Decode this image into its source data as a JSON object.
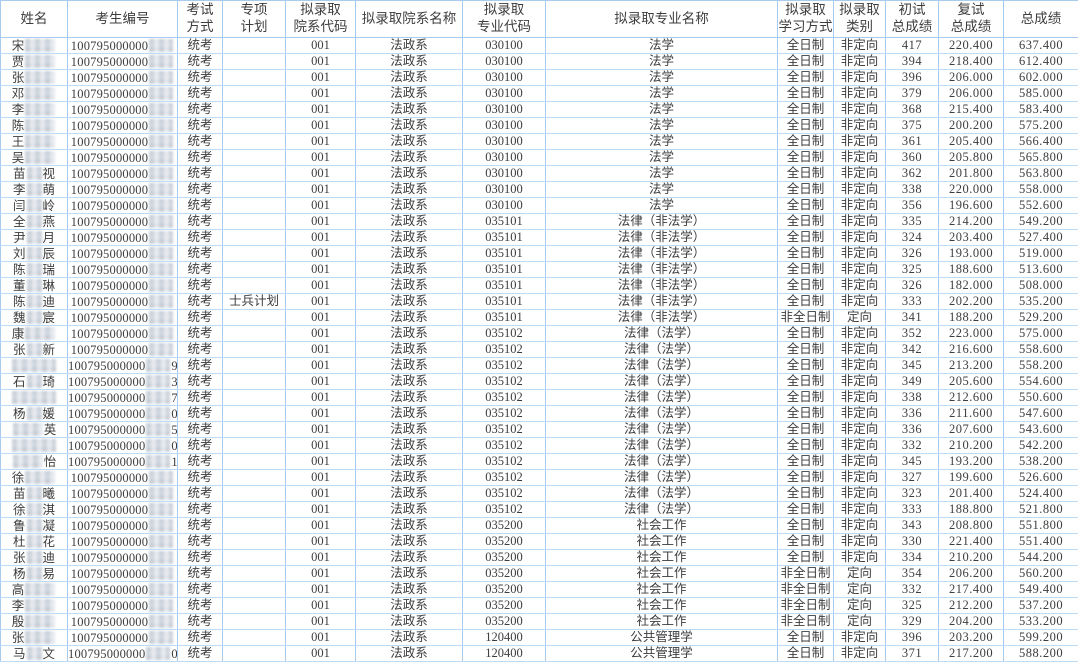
{
  "colors": {
    "grid_line": "#a6cbee",
    "grid_line_light": "#badaf5",
    "text": "#3d3d3d",
    "background": "#ffffff",
    "redaction_blur": "#d9dee5"
  },
  "table": {
    "candidate_prefix": "100795000000",
    "headers": [
      {
        "id": "name",
        "lines": [
          "姓名"
        ]
      },
      {
        "id": "candidate-no",
        "lines": [
          "考生编号"
        ]
      },
      {
        "id": "exam-method",
        "lines": [
          "考试",
          "方式"
        ]
      },
      {
        "id": "special-plan",
        "lines": [
          "专项",
          "计划"
        ]
      },
      {
        "id": "dept-code",
        "lines": [
          "拟录取",
          "院系代码"
        ]
      },
      {
        "id": "dept-name",
        "lines": [
          "拟录取院系名称"
        ]
      },
      {
        "id": "major-code",
        "lines": [
          "拟录取",
          "专业代码"
        ]
      },
      {
        "id": "major-name",
        "lines": [
          "拟录取专业名称"
        ]
      },
      {
        "id": "study-mode",
        "lines": [
          "拟录取",
          "学习方式"
        ]
      },
      {
        "id": "category",
        "lines": [
          "拟录取",
          "类别"
        ]
      },
      {
        "id": "initial-score",
        "lines": [
          "初试",
          "总成绩"
        ]
      },
      {
        "id": "retest-score",
        "lines": [
          "复试",
          "总成绩"
        ]
      },
      {
        "id": "total-score",
        "lines": [
          "总成绩"
        ]
      }
    ],
    "rows": [
      {
        "np": "宋",
        "ns": "",
        "nf": "",
        "exam": "统考",
        "plan": "",
        "dcode": "001",
        "dname": "法政系",
        "mcode": "030100",
        "mname": "法学",
        "study": "全日制",
        "cat": "非定向",
        "s1": "417",
        "s2": "220.400",
        "tot": "637.400"
      },
      {
        "np": "贾",
        "ns": "",
        "nf": "",
        "exam": "统考",
        "plan": "",
        "dcode": "001",
        "dname": "法政系",
        "mcode": "030100",
        "mname": "法学",
        "study": "全日制",
        "cat": "非定向",
        "s1": "394",
        "s2": "218.400",
        "tot": "612.400"
      },
      {
        "np": "张",
        "ns": "",
        "nf": "",
        "exam": "统考",
        "plan": "",
        "dcode": "001",
        "dname": "法政系",
        "mcode": "030100",
        "mname": "法学",
        "study": "全日制",
        "cat": "非定向",
        "s1": "396",
        "s2": "206.000",
        "tot": "602.000"
      },
      {
        "np": "邓",
        "ns": "",
        "nf": "",
        "exam": "统考",
        "plan": "",
        "dcode": "001",
        "dname": "法政系",
        "mcode": "030100",
        "mname": "法学",
        "study": "全日制",
        "cat": "非定向",
        "s1": "379",
        "s2": "206.000",
        "tot": "585.000"
      },
      {
        "np": "李",
        "ns": "",
        "nf": "",
        "exam": "统考",
        "plan": "",
        "dcode": "001",
        "dname": "法政系",
        "mcode": "030100",
        "mname": "法学",
        "study": "全日制",
        "cat": "非定向",
        "s1": "368",
        "s2": "215.400",
        "tot": "583.400"
      },
      {
        "np": "陈",
        "ns": "",
        "nf": "",
        "exam": "统考",
        "plan": "",
        "dcode": "001",
        "dname": "法政系",
        "mcode": "030100",
        "mname": "法学",
        "study": "全日制",
        "cat": "非定向",
        "s1": "375",
        "s2": "200.200",
        "tot": "575.200"
      },
      {
        "np": "王",
        "ns": "",
        "nf": "",
        "exam": "统考",
        "plan": "",
        "dcode": "001",
        "dname": "法政系",
        "mcode": "030100",
        "mname": "法学",
        "study": "全日制",
        "cat": "非定向",
        "s1": "361",
        "s2": "205.400",
        "tot": "566.400"
      },
      {
        "np": "吴",
        "ns": "",
        "nf": "",
        "exam": "统考",
        "plan": "",
        "dcode": "001",
        "dname": "法政系",
        "mcode": "030100",
        "mname": "法学",
        "study": "全日制",
        "cat": "非定向",
        "s1": "360",
        "s2": "205.800",
        "tot": "565.800"
      },
      {
        "np": "苗",
        "ns": "视",
        "nf": "",
        "exam": "统考",
        "plan": "",
        "dcode": "001",
        "dname": "法政系",
        "mcode": "030100",
        "mname": "法学",
        "study": "全日制",
        "cat": "非定向",
        "s1": "362",
        "s2": "201.800",
        "tot": "563.800"
      },
      {
        "np": "李",
        "ns": "萌",
        "nf": "",
        "exam": "统考",
        "plan": "",
        "dcode": "001",
        "dname": "法政系",
        "mcode": "030100",
        "mname": "法学",
        "study": "全日制",
        "cat": "非定向",
        "s1": "338",
        "s2": "220.000",
        "tot": "558.000"
      },
      {
        "np": "闫",
        "ns": "岭",
        "nf": "",
        "exam": "统考",
        "plan": "",
        "dcode": "001",
        "dname": "法政系",
        "mcode": "030100",
        "mname": "法学",
        "study": "全日制",
        "cat": "非定向",
        "s1": "356",
        "s2": "196.600",
        "tot": "552.600"
      },
      {
        "np": "全",
        "ns": "燕",
        "nf": "",
        "exam": "统考",
        "plan": "",
        "dcode": "001",
        "dname": "法政系",
        "mcode": "035101",
        "mname": "法律（非法学）",
        "study": "全日制",
        "cat": "非定向",
        "s1": "335",
        "s2": "214.200",
        "tot": "549.200"
      },
      {
        "np": "尹",
        "ns": "月",
        "nf": "",
        "exam": "统考",
        "plan": "",
        "dcode": "001",
        "dname": "法政系",
        "mcode": "035101",
        "mname": "法律（非法学）",
        "study": "全日制",
        "cat": "非定向",
        "s1": "324",
        "s2": "203.400",
        "tot": "527.400"
      },
      {
        "np": "刘",
        "ns": "辰",
        "nf": "",
        "exam": "统考",
        "plan": "",
        "dcode": "001",
        "dname": "法政系",
        "mcode": "035101",
        "mname": "法律（非法学）",
        "study": "全日制",
        "cat": "非定向",
        "s1": "326",
        "s2": "193.000",
        "tot": "519.000"
      },
      {
        "np": "陈",
        "ns": "瑞",
        "nf": "",
        "exam": "统考",
        "plan": "",
        "dcode": "001",
        "dname": "法政系",
        "mcode": "035101",
        "mname": "法律（非法学）",
        "study": "全日制",
        "cat": "非定向",
        "s1": "325",
        "s2": "188.600",
        "tot": "513.600"
      },
      {
        "np": "董",
        "ns": "琳",
        "nf": "",
        "exam": "统考",
        "plan": "",
        "dcode": "001",
        "dname": "法政系",
        "mcode": "035101",
        "mname": "法律（非法学）",
        "study": "全日制",
        "cat": "非定向",
        "s1": "326",
        "s2": "182.000",
        "tot": "508.000"
      },
      {
        "np": "陈",
        "ns": "迪",
        "nf": "",
        "exam": "统考",
        "plan": "士兵计划",
        "dcode": "001",
        "dname": "法政系",
        "mcode": "035101",
        "mname": "法律（非法学）",
        "study": "全日制",
        "cat": "非定向",
        "s1": "333",
        "s2": "202.200",
        "tot": "535.200"
      },
      {
        "np": "魏",
        "ns": "宸",
        "nf": "",
        "exam": "统考",
        "plan": "",
        "dcode": "001",
        "dname": "法政系",
        "mcode": "035101",
        "mname": "法律（非法学）",
        "study": "非全日制",
        "cat": "定向",
        "s1": "341",
        "s2": "188.200",
        "tot": "529.200"
      },
      {
        "np": "康",
        "ns": "",
        "nf": "",
        "exam": "统考",
        "plan": "",
        "dcode": "001",
        "dname": "法政系",
        "mcode": "035102",
        "mname": "法律（法学）",
        "study": "全日制",
        "cat": "非定向",
        "s1": "352",
        "s2": "223.000",
        "tot": "575.000"
      },
      {
        "np": "张",
        "ns": "新",
        "nf": "",
        "exam": "统考",
        "plan": "",
        "dcode": "001",
        "dname": "法政系",
        "mcode": "035102",
        "mname": "法律（法学）",
        "study": "全日制",
        "cat": "非定向",
        "s1": "342",
        "s2": "216.600",
        "tot": "558.600"
      },
      {
        "np": "",
        "ns": "",
        "nf": "9",
        "exam": "统考",
        "plan": "",
        "dcode": "001",
        "dname": "法政系",
        "mcode": "035102",
        "mname": "法律（法学）",
        "study": "全日制",
        "cat": "非定向",
        "s1": "345",
        "s2": "213.200",
        "tot": "558.200"
      },
      {
        "np": "石",
        "ns": "琦",
        "nf": "3",
        "exam": "统考",
        "plan": "",
        "dcode": "001",
        "dname": "法政系",
        "mcode": "035102",
        "mname": "法律（法学）",
        "study": "全日制",
        "cat": "非定向",
        "s1": "349",
        "s2": "205.600",
        "tot": "554.600"
      },
      {
        "np": "",
        "ns": "",
        "nf": "7",
        "exam": "统考",
        "plan": "",
        "dcode": "001",
        "dname": "法政系",
        "mcode": "035102",
        "mname": "法律（法学）",
        "study": "全日制",
        "cat": "非定向",
        "s1": "338",
        "s2": "212.600",
        "tot": "550.600"
      },
      {
        "np": "杨",
        "ns": "媛",
        "nf": "0",
        "exam": "统考",
        "plan": "",
        "dcode": "001",
        "dname": "法政系",
        "mcode": "035102",
        "mname": "法律（法学）",
        "study": "全日制",
        "cat": "非定向",
        "s1": "336",
        "s2": "211.600",
        "tot": "547.600"
      },
      {
        "np": "",
        "ns": "英",
        "nf": "5",
        "exam": "统考",
        "plan": "",
        "dcode": "001",
        "dname": "法政系",
        "mcode": "035102",
        "mname": "法律（法学）",
        "study": "全日制",
        "cat": "非定向",
        "s1": "336",
        "s2": "207.600",
        "tot": "543.600"
      },
      {
        "np": "",
        "ns": "",
        "nf": "0",
        "exam": "统考",
        "plan": "",
        "dcode": "001",
        "dname": "法政系",
        "mcode": "035102",
        "mname": "法律（法学）",
        "study": "全日制",
        "cat": "非定向",
        "s1": "332",
        "s2": "210.200",
        "tot": "542.200"
      },
      {
        "np": "",
        "ns": "怡",
        "nf": "1",
        "exam": "统考",
        "plan": "",
        "dcode": "001",
        "dname": "法政系",
        "mcode": "035102",
        "mname": "法律（法学）",
        "study": "全日制",
        "cat": "非定向",
        "s1": "345",
        "s2": "193.200",
        "tot": "538.200"
      },
      {
        "np": "徐",
        "ns": "",
        "nf": "",
        "exam": "统考",
        "plan": "",
        "dcode": "001",
        "dname": "法政系",
        "mcode": "035102",
        "mname": "法律（法学）",
        "study": "全日制",
        "cat": "非定向",
        "s1": "327",
        "s2": "199.600",
        "tot": "526.600"
      },
      {
        "np": "苗",
        "ns": "曦",
        "nf": "",
        "exam": "统考",
        "plan": "",
        "dcode": "001",
        "dname": "法政系",
        "mcode": "035102",
        "mname": "法律（法学）",
        "study": "全日制",
        "cat": "非定向",
        "s1": "323",
        "s2": "201.400",
        "tot": "524.400"
      },
      {
        "np": "徐",
        "ns": "淇",
        "nf": "",
        "exam": "统考",
        "plan": "",
        "dcode": "001",
        "dname": "法政系",
        "mcode": "035102",
        "mname": "法律（法学）",
        "study": "全日制",
        "cat": "非定向",
        "s1": "333",
        "s2": "188.800",
        "tot": "521.800"
      },
      {
        "np": "鲁",
        "ns": "凝",
        "nf": "",
        "exam": "统考",
        "plan": "",
        "dcode": "001",
        "dname": "法政系",
        "mcode": "035200",
        "mname": "社会工作",
        "study": "全日制",
        "cat": "非定向",
        "s1": "343",
        "s2": "208.800",
        "tot": "551.800"
      },
      {
        "np": "杜",
        "ns": "花",
        "nf": "",
        "exam": "统考",
        "plan": "",
        "dcode": "001",
        "dname": "法政系",
        "mcode": "035200",
        "mname": "社会工作",
        "study": "全日制",
        "cat": "非定向",
        "s1": "330",
        "s2": "221.400",
        "tot": "551.400"
      },
      {
        "np": "张",
        "ns": "迪",
        "nf": "",
        "exam": "统考",
        "plan": "",
        "dcode": "001",
        "dname": "法政系",
        "mcode": "035200",
        "mname": "社会工作",
        "study": "全日制",
        "cat": "非定向",
        "s1": "334",
        "s2": "210.200",
        "tot": "544.200"
      },
      {
        "np": "杨",
        "ns": "易",
        "nf": "",
        "exam": "统考",
        "plan": "",
        "dcode": "001",
        "dname": "法政系",
        "mcode": "035200",
        "mname": "社会工作",
        "study": "非全日制",
        "cat": "定向",
        "s1": "354",
        "s2": "206.200",
        "tot": "560.200"
      },
      {
        "np": "高",
        "ns": "",
        "nf": "",
        "exam": "统考",
        "plan": "",
        "dcode": "001",
        "dname": "法政系",
        "mcode": "035200",
        "mname": "社会工作",
        "study": "非全日制",
        "cat": "定向",
        "s1": "332",
        "s2": "217.400",
        "tot": "549.400"
      },
      {
        "np": "李",
        "ns": "",
        "nf": "",
        "exam": "统考",
        "plan": "",
        "dcode": "001",
        "dname": "法政系",
        "mcode": "035200",
        "mname": "社会工作",
        "study": "非全日制",
        "cat": "定向",
        "s1": "325",
        "s2": "212.200",
        "tot": "537.200"
      },
      {
        "np": "殷",
        "ns": "",
        "nf": "",
        "exam": "统考",
        "plan": "",
        "dcode": "001",
        "dname": "法政系",
        "mcode": "035200",
        "mname": "社会工作",
        "study": "非全日制",
        "cat": "定向",
        "s1": "329",
        "s2": "204.200",
        "tot": "533.200"
      },
      {
        "np": "张",
        "ns": "",
        "nf": "",
        "exam": "统考",
        "plan": "",
        "dcode": "001",
        "dname": "法政系",
        "mcode": "120400",
        "mname": "公共管理学",
        "study": "全日制",
        "cat": "非定向",
        "s1": "396",
        "s2": "203.200",
        "tot": "599.200"
      },
      {
        "np": "马",
        "ns": "文",
        "nf": "02",
        "exam": "统考",
        "plan": "",
        "dcode": "001",
        "dname": "法政系",
        "mcode": "120400",
        "mname": "公共管理学",
        "study": "全日制",
        "cat": "非定向",
        "s1": "371",
        "s2": "217.200",
        "tot": "588.200"
      }
    ]
  }
}
